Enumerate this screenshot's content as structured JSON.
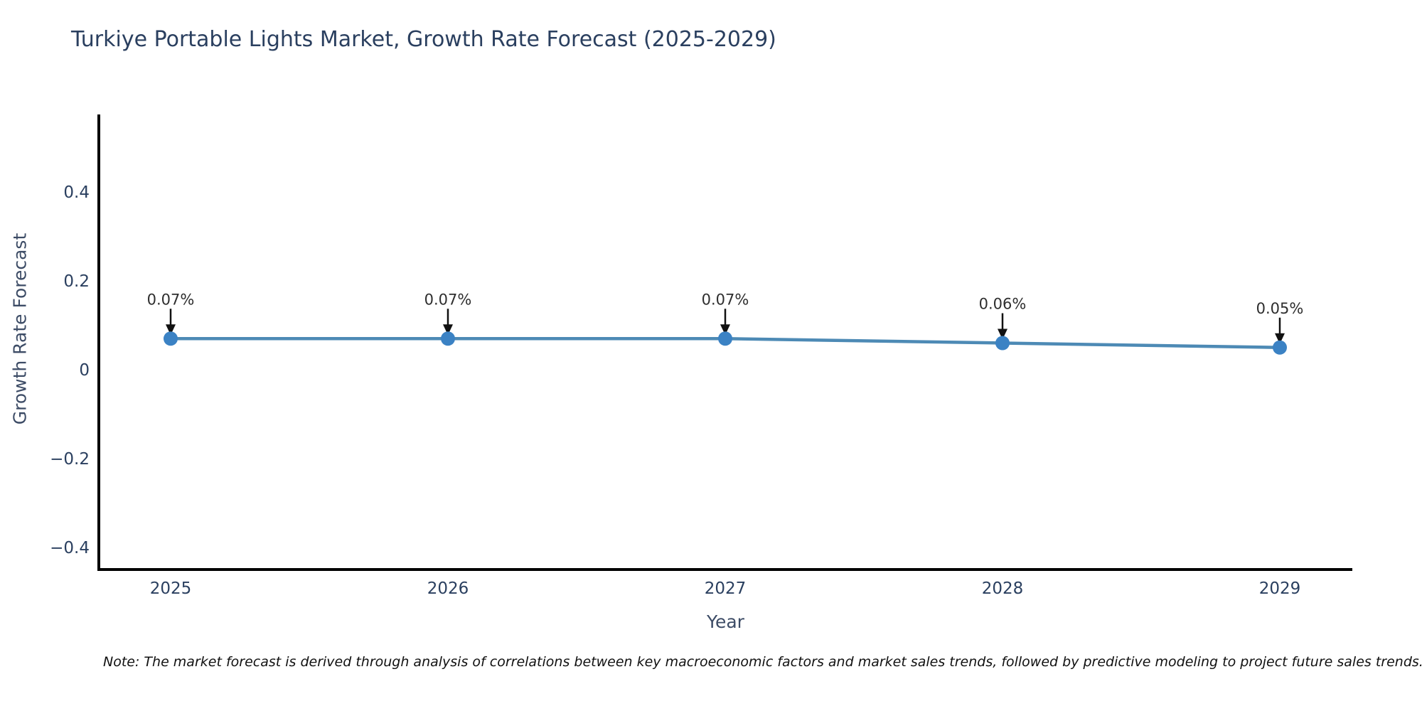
{
  "page": {
    "note": "Note: The market forecast is derived through analysis of correlations between key macroeconomic factors and market sales trends, followed by predictive modeling to project future sales trends."
  },
  "chart_data": {
    "type": "line",
    "title": "Turkiye Portable Lights Market, Growth Rate Forecast (2025-2029)",
    "xlabel": "Year",
    "ylabel": "Growth Rate Forecast",
    "categories": [
      "2025",
      "2026",
      "2027",
      "2028",
      "2029"
    ],
    "values": [
      0.07,
      0.07,
      0.07,
      0.06,
      0.05
    ],
    "point_labels": [
      "0.07%",
      "0.07%",
      "0.07%",
      "0.06%",
      "0.05%"
    ],
    "yticks": [
      {
        "label": "0.4",
        "value": 0.4
      },
      {
        "label": "0.2",
        "value": 0.2
      },
      {
        "label": "0",
        "value": 0
      },
      {
        "label": "−0.2",
        "value": -0.2
      },
      {
        "label": "−0.4",
        "value": -0.4
      }
    ],
    "ylim": [
      -0.45,
      0.57
    ],
    "grid": false,
    "legend": null,
    "annotation_style": "black-down-arrow",
    "colors": {
      "line": "#4d8ab5",
      "marker": "#3b82c4",
      "arrow": "#111111",
      "axis": "#000000",
      "tick_text": "#2a3f5f",
      "title_text": "#2a3f5f",
      "axis_title_text": "#3d4c66",
      "annotation_text": "#2e2e2e",
      "note_text": "#111111",
      "background": "#ffffff"
    }
  }
}
